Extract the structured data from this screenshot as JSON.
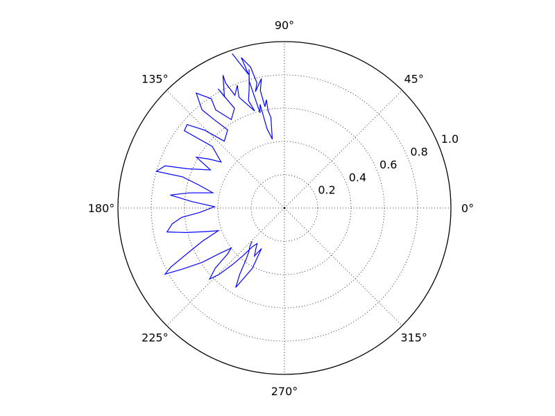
{
  "chart_data": {
    "type": "line",
    "projection": "polar",
    "title": "",
    "angle_unit": "degrees",
    "r_range": [
      0,
      1.0
    ],
    "r_ticks": [
      0.2,
      0.4,
      0.6,
      0.8,
      1.0
    ],
    "r_tick_labels": [
      "0.2",
      "0.4",
      "0.6",
      "0.8",
      "1.0"
    ],
    "theta_ticks": [
      0,
      45,
      90,
      135,
      180,
      225,
      270,
      315
    ],
    "theta_tick_labels": [
      "0°",
      "45°",
      "90°",
      "135°",
      "180°",
      "225°",
      "270°",
      "315°"
    ],
    "grid": true,
    "grid_style": "dotted",
    "legend": false,
    "series": [
      {
        "color": "#0000ff",
        "points": [
          [
            108.7,
            0.98
          ],
          [
            105.0,
            0.83
          ],
          [
            106.0,
            0.94
          ],
          [
            103.5,
            0.87
          ],
          [
            102.4,
            0.77
          ],
          [
            104.0,
            0.72
          ],
          [
            100.1,
            0.79
          ],
          [
            101.6,
            0.72
          ],
          [
            100.9,
            0.62
          ],
          [
            99.5,
            0.66
          ],
          [
            99.5,
            0.59
          ],
          [
            98.5,
            0.55
          ],
          [
            100.0,
            0.42
          ],
          [
            102.4,
            0.49
          ],
          [
            103.2,
            0.64
          ],
          [
            104.4,
            0.59
          ],
          [
            105.5,
            0.79
          ],
          [
            104.3,
            0.86
          ],
          [
            106.4,
            0.75
          ],
          [
            108.5,
            0.68
          ],
          [
            107.1,
            0.61
          ],
          [
            112.3,
            0.72
          ],
          [
            111.0,
            0.79
          ],
          [
            113.7,
            0.74
          ],
          [
            115.2,
            0.83
          ],
          [
            114.8,
            0.88
          ],
          [
            118.3,
            0.76
          ],
          [
            119.1,
            0.82
          ],
          [
            116.6,
            0.67
          ],
          [
            121.0,
            0.62
          ],
          [
            125.0,
            0.72
          ],
          [
            123.8,
            0.79
          ],
          [
            127.5,
            0.87
          ],
          [
            130.0,
            0.77
          ],
          [
            128.5,
            0.68
          ],
          [
            126.0,
            0.58
          ],
          [
            132.0,
            0.54
          ],
          [
            135.7,
            0.67
          ],
          [
            139.4,
            0.77
          ],
          [
            142.3,
            0.76
          ],
          [
            139.5,
            0.57
          ],
          [
            144.0,
            0.47
          ],
          [
            147.0,
            0.54
          ],
          [
            150.0,
            0.61
          ],
          [
            152.8,
            0.5
          ],
          [
            158.0,
            0.63
          ],
          [
            160.5,
            0.76
          ],
          [
            164.0,
            0.8
          ],
          [
            163.0,
            0.64
          ],
          [
            165.0,
            0.53
          ],
          [
            168.0,
            0.44
          ],
          [
            171.0,
            0.58
          ],
          [
            173.5,
            0.69
          ],
          [
            176.0,
            0.56
          ],
          [
            179.0,
            0.42
          ],
          [
            183.0,
            0.51
          ],
          [
            185.2,
            0.62
          ],
          [
            188.0,
            0.68
          ],
          [
            191.5,
            0.72
          ],
          [
            194.0,
            0.61
          ],
          [
            196.5,
            0.5
          ],
          [
            199.0,
            0.42
          ],
          [
            202.0,
            0.53
          ],
          [
            205.0,
            0.64
          ],
          [
            207.5,
            0.77
          ],
          [
            209.0,
            0.82
          ],
          [
            211.0,
            0.71
          ],
          [
            213.5,
            0.59
          ],
          [
            215.0,
            0.48
          ],
          [
            217.0,
            0.4
          ],
          [
            219.0,
            0.44
          ],
          [
            221.0,
            0.55
          ],
          [
            223.5,
            0.62
          ],
          [
            225.5,
            0.56
          ],
          [
            227.5,
            0.46
          ],
          [
            229.0,
            0.38
          ],
          [
            230.5,
            0.3
          ],
          [
            232.5,
            0.27
          ],
          [
            235.0,
            0.3
          ],
          [
            238.0,
            0.34
          ],
          [
            240.5,
            0.28
          ],
          [
            242.0,
            0.41
          ],
          [
            238.5,
            0.56
          ],
          [
            236.0,
            0.48
          ],
          [
            233.5,
            0.39
          ],
          [
            231.0,
            0.34
          ],
          [
            228.0,
            0.31
          ],
          [
            226.0,
            0.28
          ]
        ]
      }
    ]
  }
}
